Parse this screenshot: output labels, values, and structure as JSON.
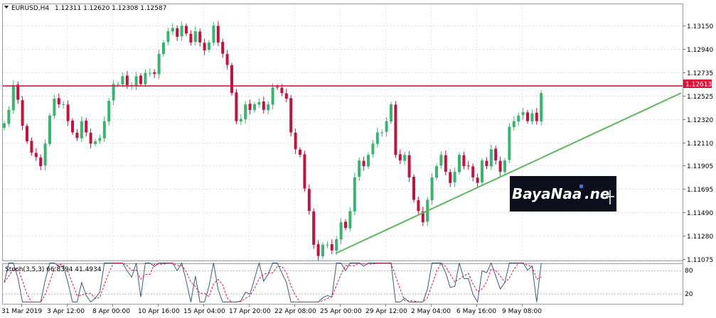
{
  "header": {
    "symbol": "EURUSD,H4",
    "ohlc": "1.12311 1.12620 1.12308 1.12587"
  },
  "indicator": {
    "label": "Stoch(3,5,3) 66.8394 41.4934",
    "levels": [
      "80",
      "20"
    ]
  },
  "price_tag": "1.12613",
  "watermark": {
    "text_main": "BayaNaa",
    "text_sub": ".ne"
  },
  "colors": {
    "bull": "#3cb371",
    "bear": "#c0143c",
    "resistance": "#dc143c",
    "trendline": "#5cb85c",
    "stoch_main": "#3b5a7a",
    "stoch_signal": "#dc143c",
    "watermark_bg": "#0c0e1c"
  },
  "chart_data": {
    "type": "candlestick",
    "symbol": "EURUSD",
    "timeframe": "H4",
    "y_ticks": [
      1.1315,
      1.1294,
      1.12735,
      1.12525,
      1.1232,
      1.1211,
      1.11905,
      1.11695,
      1.1149,
      1.1128,
      1.11075
    ],
    "y_ticks_text": [
      "1.13150",
      "1.12940",
      "1.12735",
      "1.12525",
      "1.12320",
      "1.12110",
      "1.11905",
      "1.11695",
      "1.11490",
      "1.11280",
      "1.11075"
    ],
    "ylim": [
      1.1106,
      1.1334
    ],
    "x_labels": [
      "31 Mar 2019",
      "3 Apr 12:00",
      "8 Apr 00:00",
      "10 Apr 16:00",
      "15 Apr 04:00",
      "17 Apr 20:00",
      "22 Apr 08:00",
      "25 Apr 00:00",
      "29 Apr 12:00",
      "2 May 04:00",
      "6 May 16:00",
      "9 May 08:00"
    ],
    "resistance_level": 1.12613,
    "close_prices": [
      1.1228,
      1.124,
      1.1262,
      1.1249,
      1.1226,
      1.1212,
      1.1202,
      1.1198,
      1.119,
      1.121,
      1.1235,
      1.125,
      1.1245,
      1.1245,
      1.123,
      1.122,
      1.1215,
      1.123,
      1.122,
      1.121,
      1.1212,
      1.1215,
      1.123,
      1.1248,
      1.1263,
      1.1263,
      1.127,
      1.1262,
      1.1262,
      1.127,
      1.1263,
      1.1273,
      1.1273,
      1.1272,
      1.129,
      1.13,
      1.131,
      1.1313,
      1.1305,
      1.1315,
      1.1308,
      1.13,
      1.131,
      1.13,
      1.1293,
      1.13,
      1.1315,
      1.13,
      1.129,
      1.128,
      1.1255,
      1.123,
      1.1232,
      1.1245,
      1.124,
      1.1245,
      1.1247,
      1.124,
      1.1245,
      1.126,
      1.126,
      1.1255,
      1.125,
      1.122,
      1.1205,
      1.12,
      1.117,
      1.115,
      1.112,
      1.111,
      1.112,
      1.112,
      1.1115,
      1.1125,
      1.114,
      1.1135,
      1.115,
      1.118,
      1.1195,
      1.119,
      1.12,
      1.121,
      1.122,
      1.122,
      1.123,
      1.1245,
      1.12,
      1.1195,
      1.12,
      1.118,
      1.116,
      1.115,
      1.114,
      1.116,
      1.118,
      1.119,
      1.12,
      1.1185,
      1.1175,
      1.1185,
      1.12,
      1.119,
      1.119,
      1.118,
      1.1175,
      1.1195,
      1.119,
      1.1205,
      1.1195,
      1.1185,
      1.1195,
      1.1225,
      1.123,
      1.1235,
      1.1238,
      1.123,
      1.1237,
      1.123,
      1.1255
    ]
  }
}
